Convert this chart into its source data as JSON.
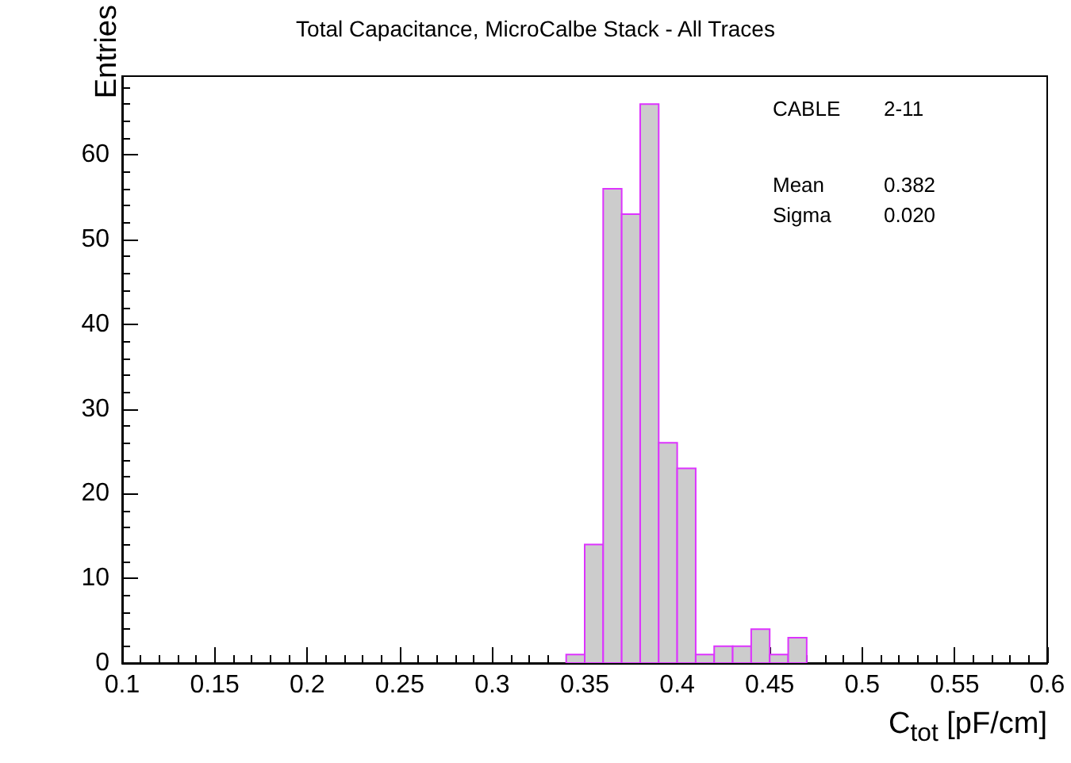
{
  "chart_data": {
    "type": "histogram",
    "title": "Total Capacitance, MicroCalbe Stack - All Traces",
    "xlabel": "C$_{tot}$ [pF/cm]",
    "ylabel": "Entries",
    "bins": [
      0.34,
      0.35,
      0.36,
      0.37,
      0.38,
      0.39,
      0.4,
      0.41,
      0.42,
      0.43,
      0.44,
      0.45,
      0.46,
      0.47
    ],
    "values": [
      1,
      14,
      56,
      53,
      66,
      26,
      23,
      1,
      2,
      2,
      4,
      1,
      3
    ],
    "color": "#cccccc",
    "xlim": [
      0.1,
      0.6
    ],
    "xticks": [
      0.1,
      0.15,
      0.2,
      0.25,
      0.3,
      0.35,
      0.4,
      0.45,
      0.5,
      0.55,
      0.6
    ],
    "ylim": [
      0,
      69.3
    ],
    "yticks": [
      0,
      10,
      20,
      30,
      40,
      50,
      60
    ],
    "annotations": [
      "CABLE",
      "2-11",
      "Mean",
      "0.382",
      "Sigma",
      "0.020"
    ]
  }
}
